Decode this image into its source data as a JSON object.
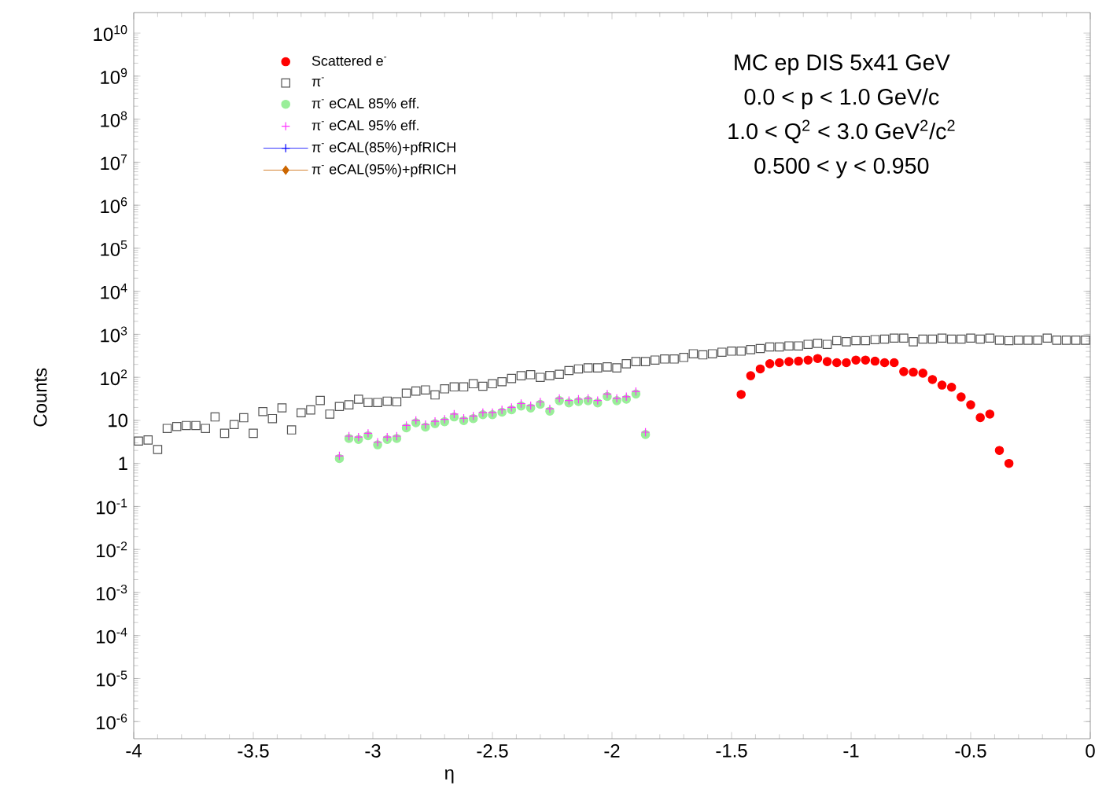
{
  "chart_data": {
    "type": "scatter",
    "xlabel": "η",
    "ylabel": "Counts",
    "log": "y",
    "legend": "top left",
    "grid": false,
    "xlim": [
      -4,
      0
    ],
    "xticks": [
      -4,
      -3.5,
      -3,
      -2.5,
      -2,
      -1.5,
      -1,
      -0.5,
      0
    ],
    "ylim": [
      4e-07,
      30000000000.0
    ],
    "yticks": [
      {
        "value": 1e-06,
        "label": "10$^{-6}$"
      },
      {
        "value": 1e-05,
        "label": "10$^{-5}$"
      },
      {
        "value": 0.0001,
        "label": "10$^{-4}$"
      },
      {
        "value": 0.001,
        "label": "10$^{-3}$"
      },
      {
        "value": 0.01,
        "label": "10$^{-2}$"
      },
      {
        "value": 0.1,
        "label": "10$^{-1}$"
      },
      1,
      10,
      {
        "value": 100,
        "label": "10$^{2}$"
      },
      {
        "value": 1000.0,
        "label": "10$^{3}$"
      },
      {
        "value": 10000.0,
        "label": "10$^{4}$"
      },
      {
        "value": 100000.0,
        "label": "10$^{5}$"
      },
      {
        "value": 1000000.0,
        "label": "10$^{6}$"
      },
      {
        "value": 10000000.0,
        "label": "10$^{7}$"
      },
      {
        "value": 100000000.0,
        "label": "10$^{8}$"
      },
      {
        "value": 1000000000.0,
        "label": "10$^{9}$"
      },
      {
        "value": 10000000000.0,
        "label": "10$^{10}$"
      }
    ],
    "annotations": [
      "MC ep DIS 5x41 GeV",
      "0.0 < p < 1.0 GeV/c",
      "1.0 < Q$^{2}$ < 3.0 GeV$^{2}$/c$^{2}$",
      "0.500 < y < 0.950"
    ],
    "series": [
      {
        "name": "Scattered e$^{-}$",
        "color": "#ff0000",
        "marker": "circle",
        "x": [
          -1.46,
          -1.42,
          -1.38,
          -1.34,
          -1.3,
          -1.26,
          -1.22,
          -1.18,
          -1.14,
          -1.1,
          -1.06,
          -1.02,
          -0.98,
          -0.94,
          -0.9,
          -0.86,
          -0.82,
          -0.78,
          -0.74,
          -0.7,
          -0.66,
          -0.62,
          -0.58,
          -0.54,
          -0.5,
          -0.46,
          -0.42,
          -0.38,
          -0.34
        ],
        "values": [
          40,
          109,
          157,
          207,
          219,
          232,
          238,
          252,
          274,
          232,
          219,
          219,
          252,
          252,
          238,
          219,
          219,
          136,
          132,
          125,
          89,
          66,
          59,
          35,
          23,
          11.6,
          14,
          2.0,
          1.0
        ]
      },
      {
        "name": "π$^{-}$",
        "color": "#555555",
        "marker": "square",
        "x": [
          -3.98,
          -3.94,
          -3.9,
          -3.86,
          -3.82,
          -3.78,
          -3.74,
          -3.7,
          -3.66,
          -3.62,
          -3.58,
          -3.54,
          -3.5,
          -3.46,
          -3.42,
          -3.38,
          -3.34,
          -3.3,
          -3.26,
          -3.22,
          -3.18,
          -3.14,
          -3.1,
          -3.06,
          -3.02,
          -2.98,
          -2.94,
          -2.9,
          -2.86,
          -2.82,
          -2.78,
          -2.74,
          -2.7,
          -2.66,
          -2.62,
          -2.58,
          -2.54,
          -2.5,
          -2.46,
          -2.42,
          -2.38,
          -2.34,
          -2.3,
          -2.26,
          -2.22,
          -2.18,
          -2.14,
          -2.1,
          -2.06,
          -2.02,
          -1.98,
          -1.94,
          -1.9,
          -1.86,
          -1.82,
          -1.78,
          -1.74,
          -1.7,
          -1.66,
          -1.62,
          -1.58,
          -1.54,
          -1.5,
          -1.46,
          -1.42,
          -1.38,
          -1.34,
          -1.3,
          -1.26,
          -1.22,
          -1.18,
          -1.14,
          -1.1,
          -1.06,
          -1.02,
          -0.98,
          -0.94,
          -0.9,
          -0.86,
          -0.82,
          -0.78,
          -0.74,
          -0.7,
          -0.66,
          -0.62,
          -0.58,
          -0.54,
          -0.5,
          -0.46,
          -0.42,
          -0.38,
          -0.34,
          -0.3,
          -0.26,
          -0.22,
          -0.18,
          -0.14,
          -0.1,
          -0.06,
          -0.02
        ],
        "values": [
          3.3,
          3.5,
          2.1,
          6.5,
          7.2,
          7.6,
          7.6,
          6.5,
          12,
          5.0,
          8,
          11.5,
          5.0,
          16,
          11,
          19.5,
          6,
          15,
          17.5,
          29,
          14,
          21,
          23,
          31,
          26,
          26,
          28,
          27,
          43,
          48,
          51,
          39,
          54,
          60,
          60,
          71,
          62,
          71,
          79,
          94,
          109,
          115,
          100,
          110,
          118,
          144,
          157,
          166,
          166,
          175,
          166,
          207,
          232,
          232,
          252,
          267,
          267,
          290,
          353,
          333,
          353,
          384,
          406,
          406,
          441,
          467,
          508,
          508,
          537,
          537,
          584,
          618,
          584,
          711,
          672,
          711,
          711,
          752,
          773,
          817,
          817,
          672,
          773,
          773,
          817,
          773,
          773,
          817,
          773,
          817,
          731,
          711,
          731,
          731,
          731,
          817,
          731,
          731,
          731,
          731
        ]
      },
      {
        "name": "π$^{-}$ eCAL 85% eff.",
        "color": "#99ee99",
        "marker": "circle",
        "x": [
          -3.14,
          -3.1,
          -3.06,
          -3.02,
          -2.98,
          -2.94,
          -2.9,
          -2.86,
          -2.82,
          -2.78,
          -2.74,
          -2.7,
          -2.66,
          -2.62,
          -2.58,
          -2.54,
          -2.5,
          -2.46,
          -2.42,
          -2.38,
          -2.34,
          -2.3,
          -2.26,
          -2.22,
          -2.18,
          -2.14,
          -2.1,
          -2.06,
          -2.02,
          -1.98,
          -1.94,
          -1.9,
          -1.86
        ],
        "values": [
          1.3,
          3.8,
          3.6,
          4.4,
          2.7,
          3.6,
          3.8,
          6.7,
          8.8,
          7.0,
          8.4,
          9.3,
          12,
          9.9,
          11,
          13.5,
          13.5,
          15.5,
          17.6,
          21.6,
          19.4,
          23.6,
          16.4,
          28.7,
          25.5,
          27.3,
          28.7,
          25.5,
          36,
          28.7,
          31,
          41,
          4.7
        ]
      },
      {
        "name": "π$^{-}$ eCAL 95% eff.",
        "color": "#ff33ff",
        "marker": "cross",
        "x": [
          -3.14,
          -3.1,
          -3.06,
          -3.02,
          -2.98,
          -2.94,
          -2.9,
          -2.86,
          -2.82,
          -2.78,
          -2.74,
          -2.7,
          -2.66,
          -2.62,
          -2.58,
          -2.54,
          -2.5,
          -2.46,
          -2.42,
          -2.38,
          -2.34,
          -2.3,
          -2.26,
          -2.22,
          -2.18,
          -2.14,
          -2.1,
          -2.06,
          -2.02,
          -1.98,
          -1.94,
          -1.9,
          -1.86
        ],
        "values": [
          1.5,
          4.3,
          4.1,
          5.0,
          3.1,
          4.1,
          4.3,
          7.6,
          10,
          8.0,
          9.5,
          10.6,
          14,
          11.2,
          12.6,
          15.3,
          15.3,
          17.6,
          20,
          24.6,
          22,
          26.8,
          18.6,
          32.6,
          29,
          31,
          32.6,
          29,
          41,
          32.6,
          35.5,
          47,
          5.3
        ]
      },
      {
        "name": "π$^{-}$ eCAL(85%)+pfRICH",
        "color": "#0000ff",
        "marker": "cross"
      },
      {
        "name": "π$^{-}$ eCAL(95%)+pfRICH",
        "color": "#cc6600",
        "marker": "diamond"
      }
    ]
  }
}
